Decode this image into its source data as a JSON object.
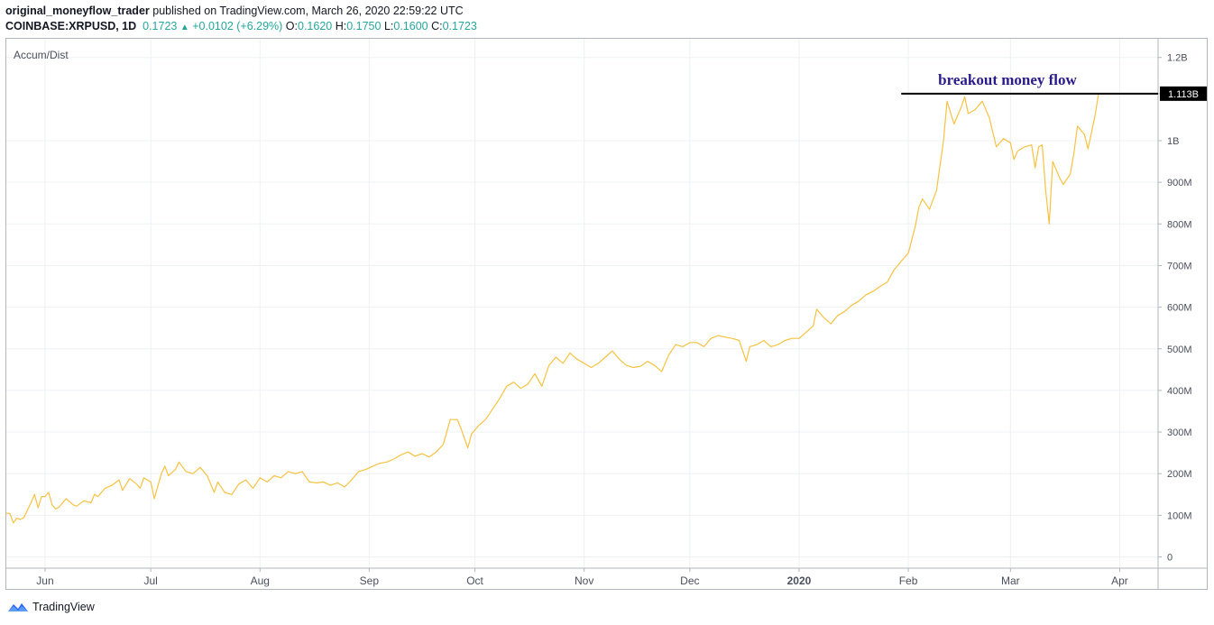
{
  "header": {
    "author": "original_moneyflow_trader",
    "published_text": "published on TradingView.com, March 26, 2020 22:59:22 UTC",
    "symbol": "COINBASE:XRPUSD, 1D",
    "last_price": "0.1723",
    "change": "+0.0102 (+6.29%)",
    "open_label": "O:",
    "open": "0.1620",
    "high_label": "H:",
    "high": "0.1750",
    "low_label": "L:",
    "low": "0.1600",
    "close_label": "C:",
    "close": "0.1723"
  },
  "indicator_title": "Accum/Dist",
  "footer": {
    "brand": "TradingView"
  },
  "colors": {
    "line": "#f7c242",
    "up": "#26a69a",
    "annotation_text": "#2a1b8c",
    "price_label_bg": "#000000"
  },
  "chart_data": {
    "type": "line",
    "series_name": "Accum/Dist",
    "x_start": "2019-05-21",
    "x_end": "2020-03-26",
    "ylim": [
      0,
      1250000000
    ],
    "y_ticks": [
      {
        "value": 0,
        "label": "0"
      },
      {
        "value": 100000000,
        "label": "100M"
      },
      {
        "value": 200000000,
        "label": "200M"
      },
      {
        "value": 300000000,
        "label": "300M"
      },
      {
        "value": 400000000,
        "label": "400M"
      },
      {
        "value": 500000000,
        "label": "500M"
      },
      {
        "value": 600000000,
        "label": "600M"
      },
      {
        "value": 700000000,
        "label": "700M"
      },
      {
        "value": 800000000,
        "label": "800M"
      },
      {
        "value": 900000000,
        "label": "900M"
      },
      {
        "value": 1000000000,
        "label": "1B"
      },
      {
        "value": 1113000000,
        "label": "1.1B"
      },
      {
        "value": 1200000000,
        "label": "1.2B"
      }
    ],
    "x_ticks": [
      {
        "date": "2019-06-01",
        "label": "Jun",
        "bold": false
      },
      {
        "date": "2019-07-01",
        "label": "Jul",
        "bold": false
      },
      {
        "date": "2019-08-01",
        "label": "Aug",
        "bold": false
      },
      {
        "date": "2019-09-01",
        "label": "Sep",
        "bold": false
      },
      {
        "date": "2019-10-01",
        "label": "Oct",
        "bold": false
      },
      {
        "date": "2019-11-01",
        "label": "Nov",
        "bold": false
      },
      {
        "date": "2019-12-01",
        "label": "Dec",
        "bold": false
      },
      {
        "date": "2020-01-01",
        "label": "2020",
        "bold": true
      },
      {
        "date": "2020-02-01",
        "label": "Feb",
        "bold": false
      },
      {
        "date": "2020-03-01",
        "label": "Mar",
        "bold": false
      },
      {
        "date": "2020-04-01",
        "label": "Apr",
        "bold": false
      }
    ],
    "points": [
      [
        "2019-05-21",
        105
      ],
      [
        "2019-05-22",
        104
      ],
      [
        "2019-05-23",
        82
      ],
      [
        "2019-05-24",
        93
      ],
      [
        "2019-05-25",
        90
      ],
      [
        "2019-05-26",
        95
      ],
      [
        "2019-05-28",
        130
      ],
      [
        "2019-05-29",
        150
      ],
      [
        "2019-05-30",
        118
      ],
      [
        "2019-05-31",
        145
      ],
      [
        "2019-06-01",
        145
      ],
      [
        "2019-06-02",
        155
      ],
      [
        "2019-06-03",
        125
      ],
      [
        "2019-06-04",
        115
      ],
      [
        "2019-06-05",
        120
      ],
      [
        "2019-06-07",
        140
      ],
      [
        "2019-06-09",
        125
      ],
      [
        "2019-06-10",
        122
      ],
      [
        "2019-06-12",
        135
      ],
      [
        "2019-06-14",
        130
      ],
      [
        "2019-06-15",
        150
      ],
      [
        "2019-06-16",
        145
      ],
      [
        "2019-06-18",
        165
      ],
      [
        "2019-06-20",
        172
      ],
      [
        "2019-06-22",
        185
      ],
      [
        "2019-06-23",
        160
      ],
      [
        "2019-06-25",
        188
      ],
      [
        "2019-06-27",
        175
      ],
      [
        "2019-06-28",
        165
      ],
      [
        "2019-06-29",
        190
      ],
      [
        "2019-07-01",
        180
      ],
      [
        "2019-07-02",
        140
      ],
      [
        "2019-07-04",
        200
      ],
      [
        "2019-07-05",
        218
      ],
      [
        "2019-07-06",
        195
      ],
      [
        "2019-07-08",
        210
      ],
      [
        "2019-07-09",
        228
      ],
      [
        "2019-07-11",
        205
      ],
      [
        "2019-07-13",
        200
      ],
      [
        "2019-07-15",
        215
      ],
      [
        "2019-07-17",
        195
      ],
      [
        "2019-07-19",
        155
      ],
      [
        "2019-07-20",
        180
      ],
      [
        "2019-07-22",
        155
      ],
      [
        "2019-07-24",
        150
      ],
      [
        "2019-07-26",
        175
      ],
      [
        "2019-07-28",
        185
      ],
      [
        "2019-07-30",
        165
      ],
      [
        "2019-08-01",
        190
      ],
      [
        "2019-08-03",
        180
      ],
      [
        "2019-08-05",
        195
      ],
      [
        "2019-08-07",
        190
      ],
      [
        "2019-08-09",
        205
      ],
      [
        "2019-08-11",
        200
      ],
      [
        "2019-08-13",
        205
      ],
      [
        "2019-08-15",
        180
      ],
      [
        "2019-08-17",
        178
      ],
      [
        "2019-08-19",
        180
      ],
      [
        "2019-08-21",
        172
      ],
      [
        "2019-08-23",
        178
      ],
      [
        "2019-08-25",
        168
      ],
      [
        "2019-08-27",
        185
      ],
      [
        "2019-08-29",
        205
      ],
      [
        "2019-08-31",
        210
      ],
      [
        "2019-09-02",
        218
      ],
      [
        "2019-09-04",
        225
      ],
      [
        "2019-09-06",
        228
      ],
      [
        "2019-09-08",
        235
      ],
      [
        "2019-09-10",
        245
      ],
      [
        "2019-09-12",
        252
      ],
      [
        "2019-09-14",
        242
      ],
      [
        "2019-09-16",
        248
      ],
      [
        "2019-09-18",
        240
      ],
      [
        "2019-09-20",
        252
      ],
      [
        "2019-09-22",
        270
      ],
      [
        "2019-09-23",
        300
      ],
      [
        "2019-09-24",
        330
      ],
      [
        "2019-09-26",
        330
      ],
      [
        "2019-09-27",
        310
      ],
      [
        "2019-09-29",
        262
      ],
      [
        "2019-09-30",
        295
      ],
      [
        "2019-10-02",
        315
      ],
      [
        "2019-10-04",
        330
      ],
      [
        "2019-10-06",
        355
      ],
      [
        "2019-10-08",
        380
      ],
      [
        "2019-10-10",
        410
      ],
      [
        "2019-10-12",
        420
      ],
      [
        "2019-10-14",
        405
      ],
      [
        "2019-10-16",
        415
      ],
      [
        "2019-10-18",
        440
      ],
      [
        "2019-10-20",
        410
      ],
      [
        "2019-10-22",
        460
      ],
      [
        "2019-10-24",
        480
      ],
      [
        "2019-10-26",
        465
      ],
      [
        "2019-10-28",
        490
      ],
      [
        "2019-10-30",
        475
      ],
      [
        "2019-11-01",
        465
      ],
      [
        "2019-11-03",
        455
      ],
      [
        "2019-11-05",
        465
      ],
      [
        "2019-11-07",
        480
      ],
      [
        "2019-11-09",
        495
      ],
      [
        "2019-11-11",
        475
      ],
      [
        "2019-11-13",
        460
      ],
      [
        "2019-11-15",
        455
      ],
      [
        "2019-11-17",
        458
      ],
      [
        "2019-11-19",
        470
      ],
      [
        "2019-11-21",
        460
      ],
      [
        "2019-11-23",
        445
      ],
      [
        "2019-11-25",
        485
      ],
      [
        "2019-11-27",
        510
      ],
      [
        "2019-11-29",
        505
      ],
      [
        "2019-12-01",
        515
      ],
      [
        "2019-12-03",
        515
      ],
      [
        "2019-12-05",
        505
      ],
      [
        "2019-12-07",
        525
      ],
      [
        "2019-12-09",
        532
      ],
      [
        "2019-12-11",
        528
      ],
      [
        "2019-12-13",
        525
      ],
      [
        "2019-12-15",
        520
      ],
      [
        "2019-12-17",
        470
      ],
      [
        "2019-12-18",
        505
      ],
      [
        "2019-12-20",
        510
      ],
      [
        "2019-12-22",
        520
      ],
      [
        "2019-12-24",
        505
      ],
      [
        "2019-12-26",
        510
      ],
      [
        "2019-12-28",
        520
      ],
      [
        "2019-12-30",
        525
      ],
      [
        "2020-01-01",
        525
      ],
      [
        "2020-01-03",
        540
      ],
      [
        "2020-01-05",
        555
      ],
      [
        "2020-01-06",
        595
      ],
      [
        "2020-01-08",
        575
      ],
      [
        "2020-01-10",
        560
      ],
      [
        "2020-01-12",
        580
      ],
      [
        "2020-01-14",
        590
      ],
      [
        "2020-01-16",
        605
      ],
      [
        "2020-01-18",
        615
      ],
      [
        "2020-01-20",
        630
      ],
      [
        "2020-01-22",
        638
      ],
      [
        "2020-01-24",
        650
      ],
      [
        "2020-01-26",
        660
      ],
      [
        "2020-01-28",
        690
      ],
      [
        "2020-01-30",
        710
      ],
      [
        "2020-02-01",
        730
      ],
      [
        "2020-02-03",
        795
      ],
      [
        "2020-02-04",
        840
      ],
      [
        "2020-02-05",
        860
      ],
      [
        "2020-02-07",
        835
      ],
      [
        "2020-02-09",
        880
      ],
      [
        "2020-02-11",
        1000
      ],
      [
        "2020-02-12",
        1095
      ],
      [
        "2020-02-14",
        1040
      ],
      [
        "2020-02-16",
        1080
      ],
      [
        "2020-02-17",
        1105
      ],
      [
        "2020-02-18",
        1065
      ],
      [
        "2020-02-20",
        1075
      ],
      [
        "2020-02-22",
        1095
      ],
      [
        "2020-02-24",
        1055
      ],
      [
        "2020-02-26",
        985
      ],
      [
        "2020-02-28",
        1005
      ],
      [
        "2020-03-01",
        995
      ],
      [
        "2020-03-02",
        955
      ],
      [
        "2020-03-03",
        975
      ],
      [
        "2020-03-05",
        985
      ],
      [
        "2020-03-07",
        990
      ],
      [
        "2020-03-08",
        935
      ],
      [
        "2020-03-09",
        985
      ],
      [
        "2020-03-10",
        990
      ],
      [
        "2020-03-11",
        880
      ],
      [
        "2020-03-12",
        800
      ],
      [
        "2020-03-13",
        950
      ],
      [
        "2020-03-15",
        910
      ],
      [
        "2020-03-16",
        895
      ],
      [
        "2020-03-18",
        920
      ],
      [
        "2020-03-19",
        970
      ],
      [
        "2020-03-20",
        1035
      ],
      [
        "2020-03-22",
        1015
      ],
      [
        "2020-03-23",
        980
      ],
      [
        "2020-03-25",
        1060
      ],
      [
        "2020-03-26",
        1113
      ]
    ],
    "points_unit": "millions",
    "annotation": {
      "text": "breakout money flow",
      "line_value": 1113000000,
      "line_start": "2020-01-30"
    },
    "last_value_label": "1.113B"
  }
}
